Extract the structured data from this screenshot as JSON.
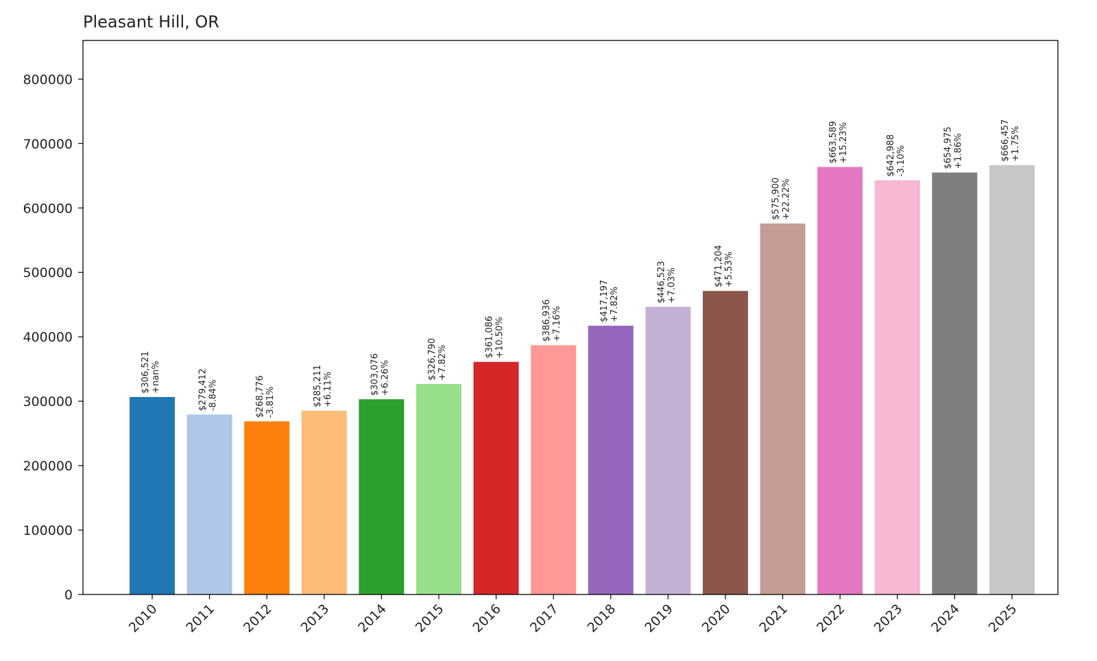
{
  "chart_data": {
    "type": "bar",
    "title": "Pleasant Hill, OR",
    "xlabel": "",
    "ylabel": "",
    "ylim": [
      0,
      860000
    ],
    "yticks": [
      0,
      100000,
      200000,
      300000,
      400000,
      500000,
      600000,
      700000,
      800000
    ],
    "ytick_labels": [
      "0",
      "100000",
      "200000",
      "300000",
      "400000",
      "500000",
      "600000",
      "700000",
      "800000"
    ],
    "categories": [
      "2010",
      "2011",
      "2012",
      "2013",
      "2014",
      "2015",
      "2016",
      "2017",
      "2018",
      "2019",
      "2020",
      "2021",
      "2022",
      "2023",
      "2024",
      "2025"
    ],
    "values": [
      306521,
      279412,
      268776,
      285211,
      303076,
      326790,
      361086,
      386936,
      417197,
      446523,
      471204,
      575900,
      663589,
      642988,
      654975,
      666457
    ],
    "value_labels": [
      "$306,521",
      "$279,412",
      "$268,776",
      "$285,211",
      "$303,076",
      "$326,790",
      "$361,086",
      "$386,936",
      "$417,197",
      "$446,523",
      "$471,204",
      "$575,900",
      "$663,589",
      "$642,988",
      "$654,975",
      "$666,457"
    ],
    "change_labels": [
      "+nan%",
      "-8.84%",
      "-3.81%",
      "+6.11%",
      "+6.26%",
      "+7.82%",
      "+10.50%",
      "+7.16%",
      "+7.82%",
      "+7.03%",
      "+5.53%",
      "+22.22%",
      "+15.23%",
      "-3.10%",
      "+1.86%",
      "+1.75%"
    ],
    "colors": [
      "#1f77b4",
      "#aec7e8",
      "#ff7f0e",
      "#ffbb78",
      "#2ca02c",
      "#98df8a",
      "#d62728",
      "#ff9896",
      "#9467bd",
      "#c5b0d5",
      "#8c564b",
      "#c49c94",
      "#e377c2",
      "#f7b6d2",
      "#7f7f7f",
      "#c7c7c7"
    ],
    "grid": false,
    "legend": "none"
  }
}
